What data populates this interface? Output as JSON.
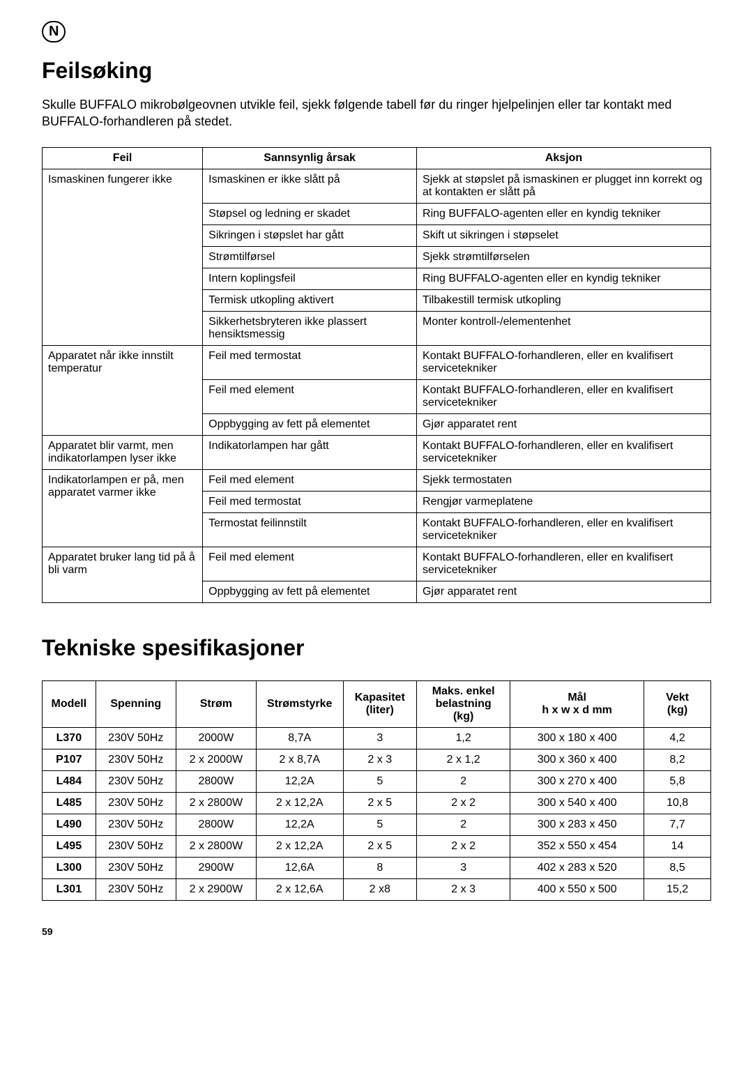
{
  "badge": "N",
  "section1": {
    "title": "Feilsøking",
    "intro": "Skulle BUFFALO mikrobølgeovnen utvikle feil, sjekk følgende tabell før du ringer hjelpelinjen eller tar kontakt med BUFFALO-forhandleren på stedet.",
    "table": {
      "columns": [
        "Feil",
        "Sannsynlig årsak",
        "Aksjon"
      ],
      "col_widths_pct": [
        24,
        32,
        44
      ],
      "groups": [
        {
          "fault": "Ismaskinen fungerer ikke",
          "rows": [
            {
              "cause": "Ismaskinen er ikke slått på",
              "action": "Sjekk at støpslet på ismaskinen er plugget inn korrekt og at kontakten er slått på"
            },
            {
              "cause": "Støpsel og ledning er skadet",
              "action": "Ring BUFFALO-agenten eller en kyndig tekniker"
            },
            {
              "cause": "Sikringen i støpslet har gått",
              "action": "Skift ut sikringen i støpselet"
            },
            {
              "cause": "Strømtilførsel",
              "action": "Sjekk strømtilførselen"
            },
            {
              "cause": "Intern koplingsfeil",
              "action": "Ring BUFFALO-agenten eller en kyndig tekniker"
            },
            {
              "cause": "Termisk utkopling aktivert",
              "action": "Tilbakestill termisk utkopling"
            },
            {
              "cause": "Sikkerhetsbryteren ikke plassert hensiktsmessig",
              "action": "Monter kontroll-/elementenhet"
            }
          ]
        },
        {
          "fault": "Apparatet når ikke innstilt temperatur",
          "rows": [
            {
              "cause": "Feil med termostat",
              "action": "Kontakt BUFFALO-forhandleren, eller en kvalifisert servicetekniker"
            },
            {
              "cause": "Feil med element",
              "action": "Kontakt BUFFALO-forhandleren, eller en kvalifisert servicetekniker"
            },
            {
              "cause": "Oppbygging av fett på elementet",
              "action": "Gjør apparatet rent"
            }
          ]
        },
        {
          "fault": "Apparatet blir varmt, men indikatorlampen lyser ikke",
          "rows": [
            {
              "cause": "Indikatorlampen har gått",
              "action": "Kontakt BUFFALO-forhandleren, eller en kvalifisert servicetekniker"
            }
          ]
        },
        {
          "fault": "Indikatorlampen er på, men apparatet varmer ikke",
          "rows": [
            {
              "cause": "Feil med element",
              "action": "Sjekk termostaten"
            },
            {
              "cause": "Feil med termostat",
              "action": "Rengjør varmeplatene"
            },
            {
              "cause": "Termostat feilinnstilt",
              "action": "Kontakt BUFFALO-forhandleren, eller en kvalifisert servicetekniker"
            }
          ]
        },
        {
          "fault": "Apparatet bruker lang tid på å bli varm",
          "rows": [
            {
              "cause": "Feil med element",
              "action": "Kontakt BUFFALO-forhandleren, eller en kvalifisert servicetekniker"
            },
            {
              "cause": "Oppbygging av fett på elementet",
              "action": "Gjør apparatet rent"
            }
          ]
        }
      ]
    }
  },
  "section2": {
    "title": "Tekniske spesifikasjoner",
    "table": {
      "columns": [
        "Modell",
        "Spenning",
        "Strøm",
        "Strømstyrke",
        "Kapasitet (liter)",
        "Maks. enkel belastning (kg)",
        "Mål h x w x d mm",
        "Vekt (kg)"
      ],
      "col_widths_pct": [
        8,
        12,
        12,
        13,
        11,
        14,
        20,
        10
      ],
      "rows": [
        [
          "L370",
          "230V 50Hz",
          "2000W",
          "8,7A",
          "3",
          "1,2",
          "300 x 180 x 400",
          "4,2"
        ],
        [
          "P107",
          "230V 50Hz",
          "2 x 2000W",
          "2 x 8,7A",
          "2 x 3",
          "2 x 1,2",
          "300 x 360 x 400",
          "8,2"
        ],
        [
          "L484",
          "230V 50Hz",
          "2800W",
          "12,2A",
          "5",
          "2",
          "300 x 270 x 400",
          "5,8"
        ],
        [
          "L485",
          "230V 50Hz",
          "2 x 2800W",
          "2 x 12,2A",
          "2 x 5",
          "2 x 2",
          "300 x 540 x 400",
          "10,8"
        ],
        [
          "L490",
          "230V 50Hz",
          "2800W",
          "12,2A",
          "5",
          "2",
          "300 x 283 x 450",
          "7,7"
        ],
        [
          "L495",
          "230V 50Hz",
          "2 x 2800W",
          "2 x 12,2A",
          "2 x 5",
          "2 x 2",
          "352 x 550 x 454",
          "14"
        ],
        [
          "L300",
          "230V 50Hz",
          "2900W",
          "12,6A",
          "8",
          "3",
          "402 x 283 x 520",
          "8,5"
        ],
        [
          "L301",
          "230V 50Hz",
          "2 x 2900W",
          "2 x 12,6A",
          "2 x8",
          "2 x 3",
          "400 x 550 x 500",
          "15,2"
        ]
      ]
    }
  },
  "page_number": "59",
  "colors": {
    "text": "#000000",
    "background": "#ffffff",
    "border": "#000000"
  }
}
